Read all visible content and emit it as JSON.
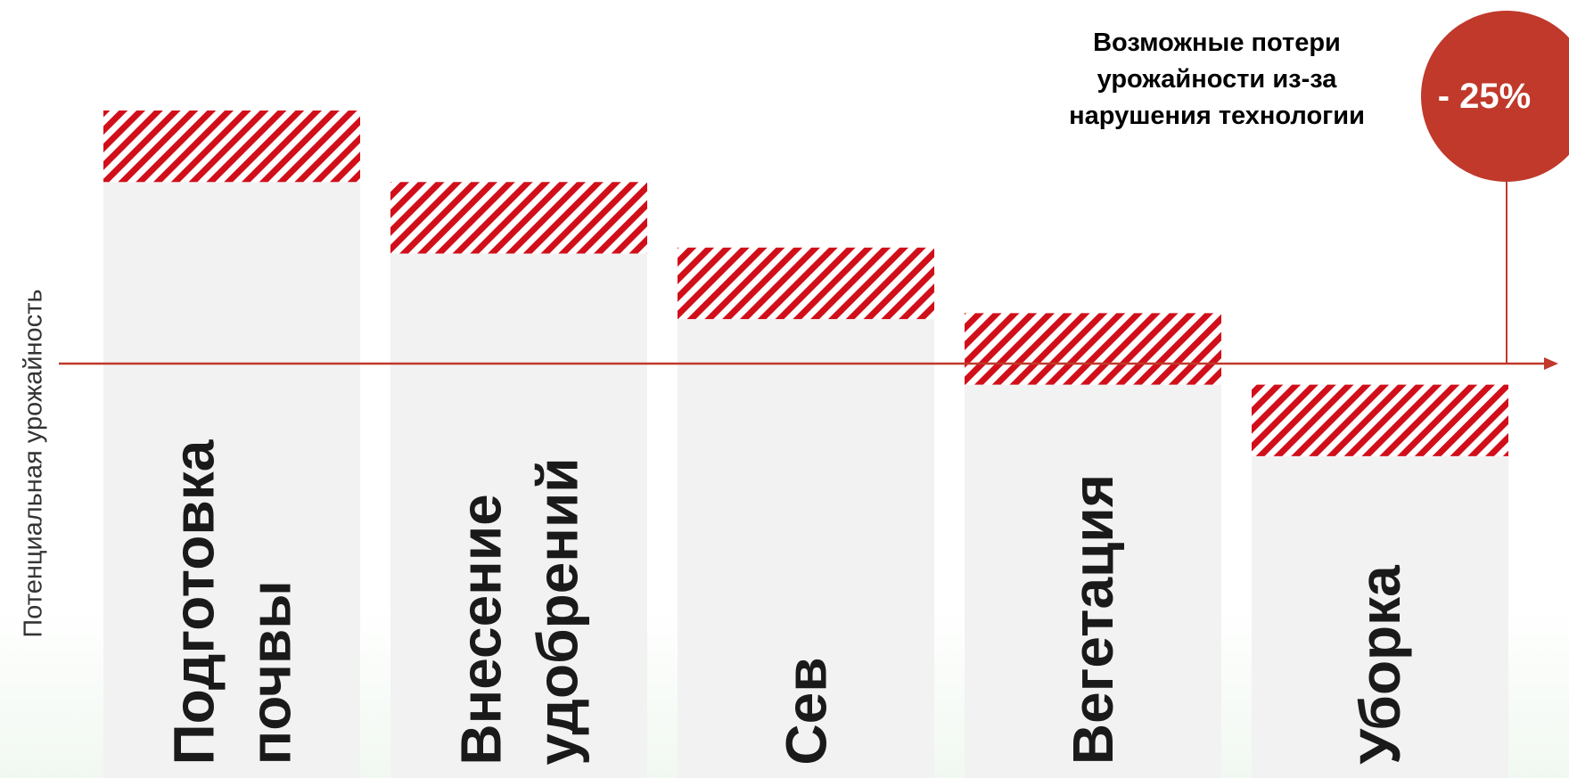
{
  "chart_data": {
    "type": "bar",
    "stacked": true,
    "ylabel": "Потенциальная урожайность",
    "categories": [
      "Подготовка\nпочвы",
      "Внесение\nудобрений",
      "Сев",
      "Вегетация",
      "Уборка"
    ],
    "series": [
      {
        "values": [
          100,
          88,
          77,
          66,
          54
        ]
      },
      {
        "values": [
          12,
          12,
          12,
          12,
          12
        ]
      }
    ],
    "colors": {
      "bar": "#f2f2f2",
      "hatch": "#d10f1a",
      "axis": "#c0392b",
      "badge": "#c0392b"
    }
  },
  "annotation": {
    "note": "Возможные потери урожайности из-за нарушения технологии",
    "badge": "- 25%"
  }
}
